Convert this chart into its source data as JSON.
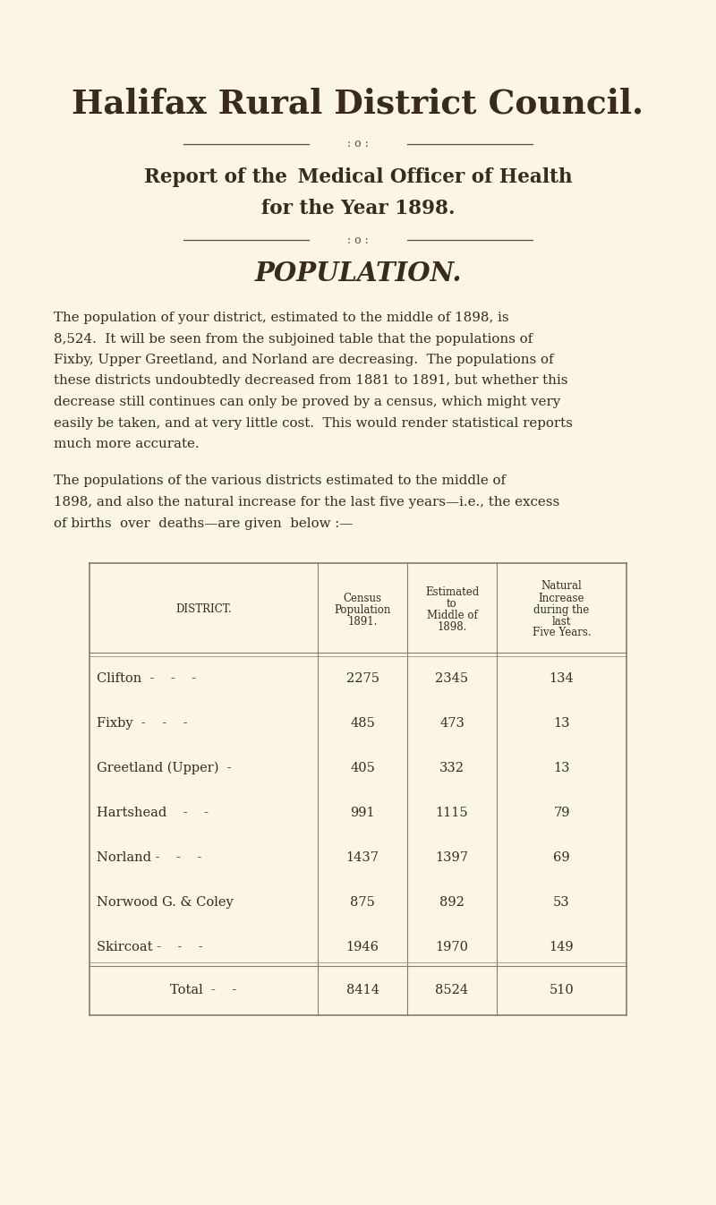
{
  "bg_color": "#faf5e4",
  "text_color": "#3a2a1a",
  "title": "Halifax Rural District Council.",
  "report_line1": "Report of the  Medical Officer of Health",
  "report_line2": "for the Year 1898.",
  "section_title": "POPULATION.",
  "para1_lines": [
    "The population of your district, estimated to the middle of 1898, is",
    "8,524.  It will be seen from the subjoined table that the populations of",
    "Fixby, Upper Greetland, and Norland are decreasing.  The populations of",
    "these districts undoubtedly decreased from 1881 to 1891, but whether this",
    "decrease still continues can only be proved by a census, which might very",
    "easily be taken, and at very little cost.  This would render statistical reports",
    "much more accurate."
  ],
  "para2_lines": [
    "The populations of the various districts estimated to the middle of",
    "1898, and also the natural increase for the last five years—i.e., the excess",
    "of births  over  deaths—are given  below :—"
  ],
  "col_headers": [
    "DISTRICT.",
    "Census\nPopulation\n1891.",
    "Estimated\nto\nMiddle of\n1898.",
    "Natural\nIncrease\nduring the\nlast\nFive Years."
  ],
  "rows": [
    [
      "Clifton  -    -    -",
      "2275",
      "2345",
      "134"
    ],
    [
      "Fixby  -    -    -",
      "485",
      "473",
      "13"
    ],
    [
      "Greetland (Upper)  -",
      "405",
      "332",
      "13"
    ],
    [
      "Hartshead    -    -",
      "991",
      "1115",
      "79"
    ],
    [
      "Norland -    -    -",
      "1437",
      "1397",
      "69"
    ],
    [
      "Norwood G. & Coley",
      "875",
      "892",
      "53"
    ],
    [
      "Skircoat -    -    -",
      "1946",
      "1970",
      "149"
    ]
  ],
  "total_row": [
    "Total  -    -",
    "8414",
    "8524",
    "510"
  ],
  "divider_color": "#5a4a3a",
  "table_line_color": "#8a7a6a"
}
